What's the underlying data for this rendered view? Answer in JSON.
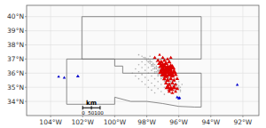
{
  "chart_data": {
    "type": "scatter",
    "xlim": [
      -105.5,
      -91.0
    ],
    "ylim": [
      33.0,
      40.8
    ],
    "xticks": [
      {
        "value": -104,
        "label": "104°W"
      },
      {
        "value": -102,
        "label": "102°W"
      },
      {
        "value": -100,
        "label": "100°W"
      },
      {
        "value": -98,
        "label": "98°W"
      },
      {
        "value": -96,
        "label": "96°W"
      },
      {
        "value": -94,
        "label": "94°W"
      },
      {
        "value": -92,
        "label": "92°W"
      }
    ],
    "yticks": [
      {
        "value": 34,
        "label": "34°N"
      },
      {
        "value": 35,
        "label": "35°N"
      },
      {
        "value": 36,
        "label": "36°N"
      },
      {
        "value": 37,
        "label": "37°N"
      },
      {
        "value": 38,
        "label": "38°N"
      },
      {
        "value": 39,
        "label": "39°N"
      },
      {
        "value": 40,
        "label": "40°N"
      }
    ],
    "grid": true,
    "series": [
      {
        "type": "scatter",
        "marker": "circle",
        "color": "#b0b0b0",
        "x": [
          -98.5,
          -98.3,
          -98.1,
          -97.9,
          -97.8,
          -97.7,
          -97.6,
          -97.5,
          -97.4,
          -97.3,
          -97.2,
          -97.1,
          -97.0,
          -96.9,
          -96.8,
          -96.7,
          -96.6,
          -96.5,
          -96.4,
          -96.3,
          -96.2,
          -96.1,
          -96.0,
          -95.9,
          -98.2,
          -98.0,
          -97.8,
          -97.6,
          -97.4,
          -97.2,
          -97.0,
          -96.8,
          -96.6,
          -96.4,
          -96.2,
          -96.0,
          -98.0,
          -97.8,
          -97.6,
          -97.4,
          -97.2,
          -97.0,
          -96.8,
          -96.6,
          -96.4,
          -96.2,
          -96.0,
          -97.9,
          -97.7,
          -97.5,
          -97.3,
          -97.1,
          -96.9,
          -96.7,
          -96.5,
          -96.3,
          -96.1,
          -95.9,
          -97.7,
          -97.5,
          -97.3,
          -97.1,
          -96.9,
          -96.7,
          -96.5,
          -96.3,
          -96.1,
          -95.9,
          -97.6,
          -97.4,
          -97.2,
          -97.0,
          -96.8,
          -96.6,
          -96.4,
          -96.2,
          -97.5,
          -97.3,
          -97.1,
          -96.9,
          -96.7,
          -96.5,
          -96.3,
          -97.8,
          -97.6,
          -97.4,
          -97.2,
          -97.0,
          -96.8,
          -96.6,
          -96.4,
          -96.2,
          -96.0,
          -95.8,
          -98.1,
          -97.9,
          -97.7,
          -97.5,
          -97.3,
          -97.1,
          -96.9,
          -96.7,
          -96.5,
          -96.3,
          -96.1,
          -98.3,
          -98.1,
          -97.9,
          -97.7,
          -97.5,
          -97.3,
          -97.1,
          -96.9,
          -96.7,
          -96.5,
          -96.3,
          -98.5,
          -98.3,
          -98.1,
          -97.9,
          -97.7,
          -97.5,
          -97.3,
          -97.1,
          -96.9,
          -96.7,
          -96.5,
          -98.7,
          -98.5,
          -98.3,
          -98.1,
          -97.9,
          -97.7,
          -97.5,
          -97.3,
          -97.1,
          -96.9,
          -98.9,
          -98.7,
          -98.5,
          -98.3,
          -98.1,
          -97.9,
          -97.7,
          -97.5
        ],
        "values": [
          37.3,
          37.2,
          37.1,
          37.0,
          36.9,
          36.8,
          36.7,
          36.6,
          36.5,
          36.4,
          36.3,
          36.2,
          36.1,
          36.0,
          35.9,
          35.8,
          35.7,
          35.6,
          35.5,
          35.4,
          35.3,
          35.2,
          35.1,
          35.0,
          37.1,
          37.0,
          36.8,
          36.6,
          36.4,
          36.2,
          36.0,
          35.8,
          35.6,
          35.4,
          35.2,
          35.0,
          36.9,
          36.7,
          36.5,
          36.3,
          36.1,
          35.9,
          35.7,
          35.5,
          35.3,
          35.1,
          34.9,
          36.8,
          36.6,
          36.4,
          36.2,
          36.0,
          35.8,
          35.6,
          35.4,
          35.2,
          35.0,
          34.8,
          36.5,
          36.3,
          36.1,
          35.9,
          35.7,
          35.5,
          35.3,
          35.1,
          34.9,
          34.7,
          36.3,
          36.1,
          35.9,
          35.7,
          35.5,
          35.3,
          35.1,
          34.9,
          36.1,
          35.9,
          35.7,
          35.5,
          35.3,
          35.1,
          34.9,
          37.2,
          37.0,
          36.8,
          36.6,
          36.4,
          36.2,
          36.0,
          35.8,
          35.6,
          35.4,
          35.2,
          37.0,
          36.8,
          36.6,
          36.4,
          36.2,
          36.0,
          35.8,
          35.6,
          35.4,
          35.2,
          35.0,
          36.8,
          36.6,
          36.4,
          36.2,
          36.0,
          35.8,
          35.6,
          35.4,
          35.2,
          35.0,
          34.8,
          36.6,
          36.4,
          36.2,
          36.0,
          35.8,
          35.6,
          35.4,
          35.2,
          35.0,
          34.8,
          34.6,
          36.3,
          36.1,
          35.9,
          35.7,
          35.5,
          35.3,
          35.1,
          34.9,
          34.7,
          34.5,
          36.0,
          35.8,
          35.6,
          35.4,
          35.2,
          35.0,
          34.8,
          34.6
        ]
      },
      {
        "type": "line",
        "color": "#707070",
        "x": [
          -103.0,
          -100.0,
          -100.0,
          -99.5,
          -99.5,
          -94.6,
          -94.6,
          -95.0,
          -96.0,
          -97.0,
          -98.0,
          -99.0,
          -100.0,
          -100.0,
          -101.0,
          -103.0,
          -103.0
        ],
        "values": [
          37.0,
          37.0,
          36.5,
          36.5,
          36.0,
          36.0,
          33.6,
          33.6,
          33.65,
          33.85,
          34.0,
          34.0,
          34.3,
          33.8,
          33.8,
          33.8,
          37.0
        ]
      },
      {
        "type": "line",
        "color": "#707070",
        "x": [
          -102.05,
          -94.6,
          -94.6,
          -100.0,
          -102.05,
          -102.05
        ],
        "values": [
          40.0,
          40.0,
          37.0,
          37.0,
          37.0,
          40.0
        ]
      },
      {
        "type": "scatter",
        "marker": "triangle",
        "color": "#0000cc",
        "x": [
          -103.5,
          -103.15,
          -102.3,
          -96.1,
          -95.95,
          -96.0,
          -92.35
        ],
        "values": [
          35.75,
          35.68,
          35.78,
          34.3,
          34.25,
          34.22,
          35.18
        ],
        "sizes": [
          2,
          2,
          3,
          2,
          2,
          2,
          2
        ]
      },
      {
        "type": "scatter",
        "marker": "triangle",
        "color": "#dd0000",
        "x": [
          -97.2,
          -97.5,
          -97.0,
          -97.3,
          -97.1,
          -96.9,
          -96.7,
          -96.5,
          -97.2,
          -97.0,
          -96.8,
          -96.6,
          -97.1,
          -96.9,
          -96.7,
          -96.5,
          -97.0,
          -96.8,
          -96.6,
          -96.4,
          -97.1,
          -96.9,
          -96.7,
          -96.5,
          -96.3,
          -97.0,
          -96.8,
          -96.6,
          -96.4,
          -96.2,
          -96.9,
          -96.7,
          -96.5,
          -96.3,
          -96.1,
          -96.8,
          -96.6,
          -96.4,
          -96.2,
          -96.7,
          -96.5,
          -96.3,
          -96.1,
          -96.6,
          -96.4,
          -96.2
        ],
        "values": [
          37.3,
          37.1,
          37.1,
          36.9,
          36.8,
          36.9,
          37.0,
          37.1,
          36.7,
          36.6,
          36.7,
          36.8,
          36.5,
          36.5,
          36.4,
          36.5,
          36.3,
          36.2,
          36.3,
          36.4,
          36.1,
          36.0,
          36.1,
          36.0,
          36.1,
          35.9,
          35.8,
          35.9,
          35.8,
          35.9,
          35.6,
          35.5,
          35.6,
          35.5,
          35.6,
          35.3,
          35.2,
          35.3,
          35.2,
          35.0,
          34.9,
          35.0,
          34.9,
          34.7,
          34.6,
          34.7
        ],
        "sizes": [
          2,
          3,
          3,
          4,
          5,
          4,
          3,
          3,
          6,
          7,
          6,
          5,
          8,
          9,
          8,
          7,
          10,
          12,
          11,
          9,
          8,
          10,
          9,
          11,
          8,
          7,
          8,
          7,
          6,
          5,
          5,
          6,
          5,
          4,
          4,
          4,
          5,
          4,
          3,
          8,
          9,
          7,
          4,
          3,
          3,
          3
        ]
      },
      {
        "type": "line",
        "marker": "tick",
        "color": "#000000",
        "x": [
          -102.0,
          -101.455,
          -100.91
        ],
        "values": [
          33.55,
          33.55,
          33.55
        ]
      }
    ],
    "annotations": [
      {
        "text": "km",
        "x": -101.455,
        "y": 33.73
      },
      {
        "text": "0  50100",
        "x": -102.05,
        "y": 33.33
      }
    ]
  }
}
